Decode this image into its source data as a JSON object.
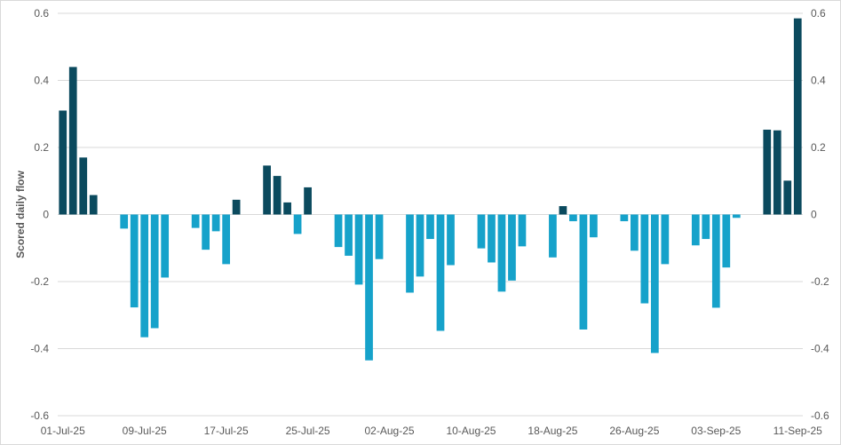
{
  "chart_data": {
    "type": "bar",
    "title": "",
    "xlabel": "",
    "ylabel": "Scored daily flow",
    "ylim": [
      -0.6,
      0.6
    ],
    "y_ticks": [
      "0.6",
      "0.4",
      "0.2",
      "0",
      "-0.2",
      "-0.4",
      "-0.6"
    ],
    "y2_ticks": [
      "0.6",
      "0.4",
      "0.2",
      "0",
      "-0.2",
      "-0.4",
      "-0.6"
    ],
    "y_tick_values": [
      0.6,
      0.4,
      0.2,
      0,
      -0.2,
      -0.4,
      -0.6
    ],
    "grid": "horizontal",
    "legend": "none",
    "colors": {
      "positive": "#0b4a5e",
      "negative": "#16a2ca",
      "grid": "#d9d9d9",
      "zero_line": "#d9d9d9"
    },
    "x_tick_labels": [
      "01-Jul-25",
      "09-Jul-25",
      "17-Jul-25",
      "25-Jul-25",
      "02-Aug-25",
      "10-Aug-25",
      "18-Aug-25",
      "26-Aug-25",
      "03-Sep-25",
      "11-Sep-25"
    ],
    "bars": [
      {
        "date": "01-Jul-25",
        "value": 0.31
      },
      {
        "date": "02-Jul-25",
        "value": 0.44
      },
      {
        "date": "03-Jul-25",
        "value": 0.17
      },
      {
        "date": "04-Jul-25",
        "value": 0.058
      },
      {
        "date": "05-Jul-25",
        "value": null
      },
      {
        "date": "06-Jul-25",
        "value": null
      },
      {
        "date": "07-Jul-25",
        "value": -0.042
      },
      {
        "date": "08-Jul-25",
        "value": -0.277
      },
      {
        "date": "09-Jul-25",
        "value": -0.366
      },
      {
        "date": "10-Jul-25",
        "value": -0.339
      },
      {
        "date": "11-Jul-25",
        "value": -0.188
      },
      {
        "date": "12-Jul-25",
        "value": null
      },
      {
        "date": "13-Jul-25",
        "value": null
      },
      {
        "date": "14-Jul-25",
        "value": -0.04
      },
      {
        "date": "15-Jul-25",
        "value": -0.105
      },
      {
        "date": "16-Jul-25",
        "value": -0.05
      },
      {
        "date": "17-Jul-25",
        "value": -0.148
      },
      {
        "date": "18-Jul-25",
        "value": 0.044
      },
      {
        "date": "19-Jul-25",
        "value": null
      },
      {
        "date": "20-Jul-25",
        "value": null
      },
      {
        "date": "21-Jul-25",
        "value": 0.146
      },
      {
        "date": "22-Jul-25",
        "value": 0.115
      },
      {
        "date": "23-Jul-25",
        "value": 0.036
      },
      {
        "date": "24-Jul-25",
        "value": -0.058
      },
      {
        "date": "25-Jul-25",
        "value": 0.081
      },
      {
        "date": "26-Jul-25",
        "value": null
      },
      {
        "date": "27-Jul-25",
        "value": null
      },
      {
        "date": "28-Jul-25",
        "value": -0.097
      },
      {
        "date": "29-Jul-25",
        "value": -0.123
      },
      {
        "date": "30-Jul-25",
        "value": -0.209
      },
      {
        "date": "31-Jul-25",
        "value": -0.435
      },
      {
        "date": "01-Aug-25",
        "value": -0.133
      },
      {
        "date": "02-Aug-25",
        "value": null
      },
      {
        "date": "03-Aug-25",
        "value": null
      },
      {
        "date": "04-Aug-25",
        "value": -0.233
      },
      {
        "date": "05-Aug-25",
        "value": -0.185
      },
      {
        "date": "06-Aug-25",
        "value": -0.073
      },
      {
        "date": "07-Aug-25",
        "value": -0.347
      },
      {
        "date": "08-Aug-25",
        "value": -0.151
      },
      {
        "date": "09-Aug-25",
        "value": null
      },
      {
        "date": "10-Aug-25",
        "value": null
      },
      {
        "date": "11-Aug-25",
        "value": -0.101
      },
      {
        "date": "12-Aug-25",
        "value": -0.143
      },
      {
        "date": "13-Aug-25",
        "value": -0.23
      },
      {
        "date": "14-Aug-25",
        "value": -0.197
      },
      {
        "date": "15-Aug-25",
        "value": -0.095
      },
      {
        "date": "16-Aug-25",
        "value": null
      },
      {
        "date": "17-Aug-25",
        "value": null
      },
      {
        "date": "18-Aug-25",
        "value": -0.128
      },
      {
        "date": "19-Aug-25",
        "value": 0.025
      },
      {
        "date": "20-Aug-25",
        "value": -0.02
      },
      {
        "date": "21-Aug-25",
        "value": -0.343
      },
      {
        "date": "22-Aug-25",
        "value": -0.068
      },
      {
        "date": "23-Aug-25",
        "value": null
      },
      {
        "date": "24-Aug-25",
        "value": null
      },
      {
        "date": "25-Aug-25",
        "value": -0.02
      },
      {
        "date": "26-Aug-25",
        "value": -0.108
      },
      {
        "date": "27-Aug-25",
        "value": -0.265
      },
      {
        "date": "28-Aug-25",
        "value": -0.413
      },
      {
        "date": "29-Aug-25",
        "value": -0.148
      },
      {
        "date": "30-Aug-25",
        "value": null
      },
      {
        "date": "31-Aug-25",
        "value": null
      },
      {
        "date": "01-Sep-25",
        "value": -0.092
      },
      {
        "date": "02-Sep-25",
        "value": -0.073
      },
      {
        "date": "03-Sep-25",
        "value": -0.278
      },
      {
        "date": "04-Sep-25",
        "value": -0.158
      },
      {
        "date": "05-Sep-25",
        "value": -0.01
      },
      {
        "date": "06-Sep-25",
        "value": null
      },
      {
        "date": "07-Sep-25",
        "value": null
      },
      {
        "date": "08-Sep-25",
        "value": 0.253
      },
      {
        "date": "09-Sep-25",
        "value": 0.251
      },
      {
        "date": "10-Sep-25",
        "value": 0.101
      },
      {
        "date": "11-Sep-25",
        "value": 0.585
      }
    ]
  }
}
